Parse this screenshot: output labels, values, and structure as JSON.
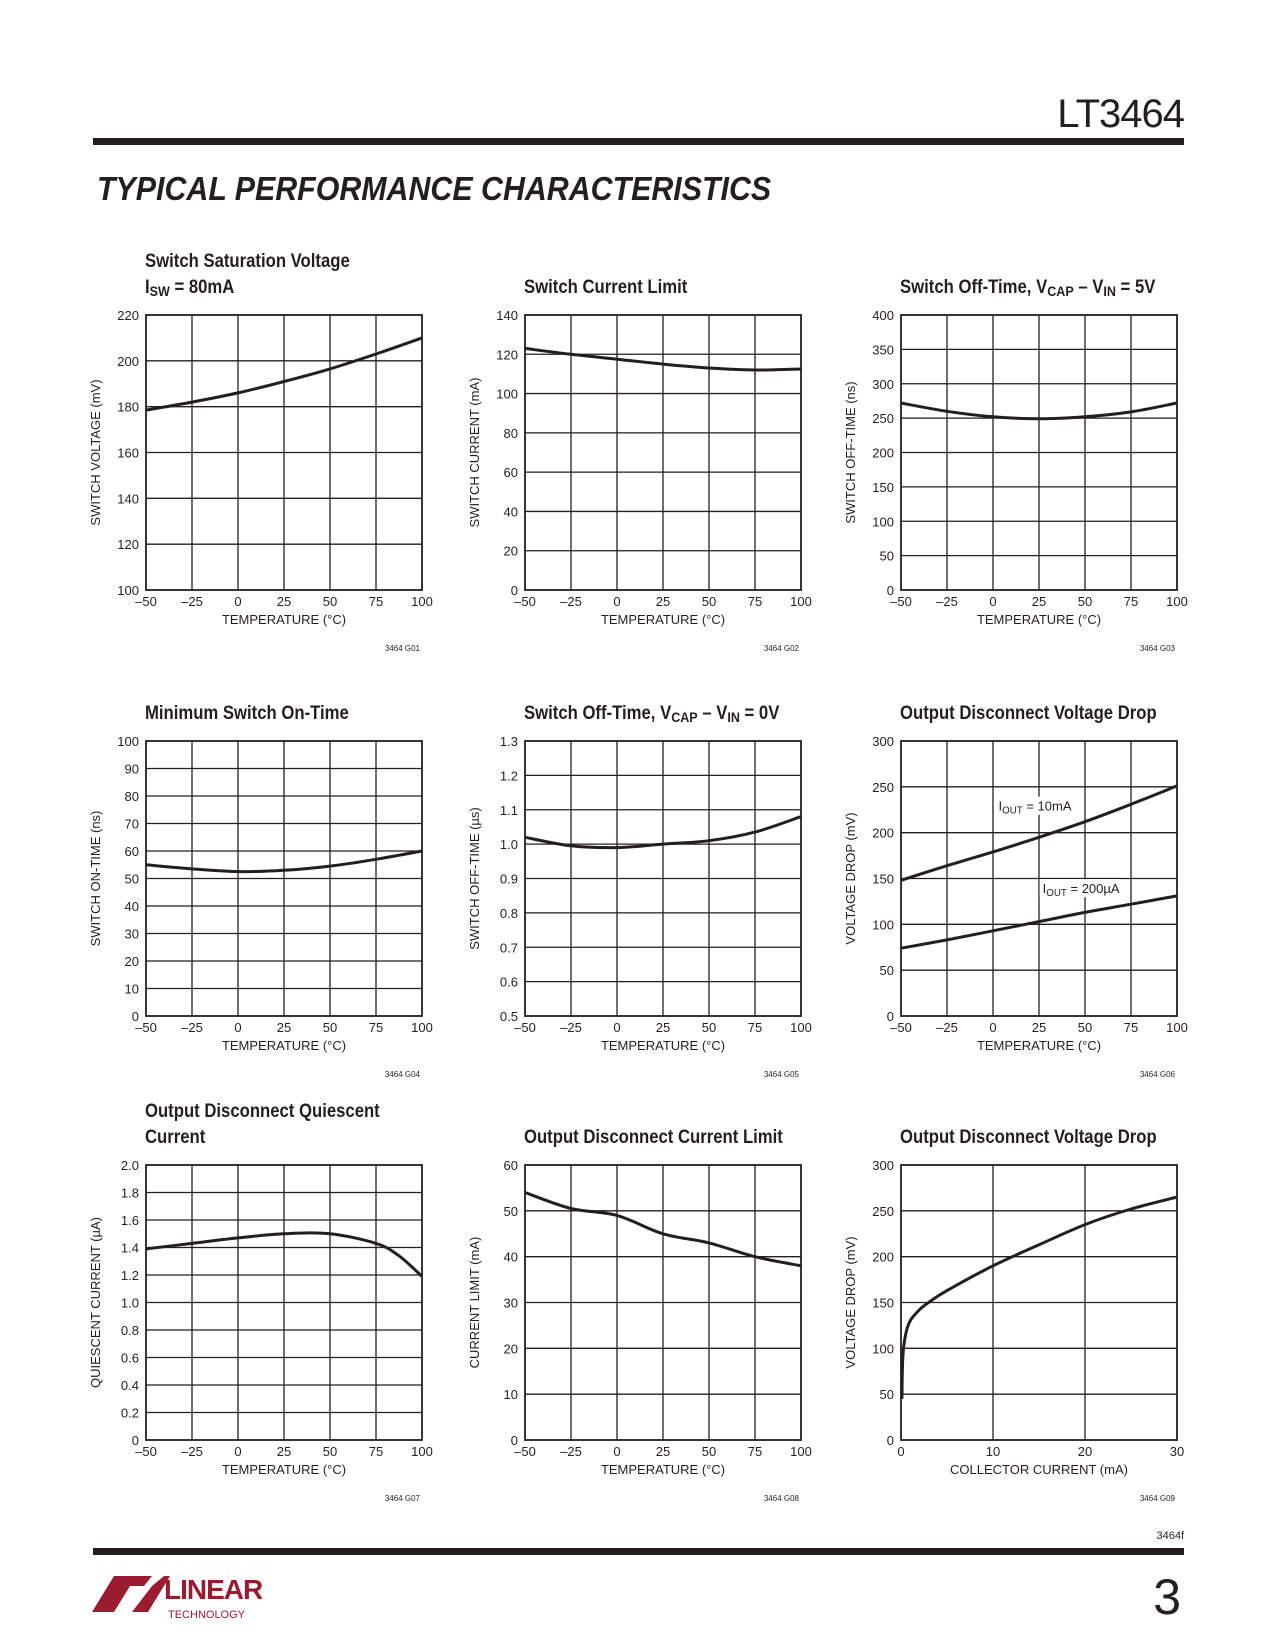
{
  "header": {
    "part_number": "LT3464",
    "section_title": "Typical Performance Characteristics"
  },
  "footer": {
    "doc_id": "3464f",
    "page_number": "3",
    "logo_text": "LINEAR",
    "logo_subtext": "TECHNOLOGY",
    "logo_color": "#9b1b30"
  },
  "chart_data": [
    {
      "type": "line",
      "id": "3464 G01",
      "title": [
        [
          {
            "t": "Switch Saturation Voltage"
          }
        ],
        [
          {
            "t": "I"
          },
          {
            "sub": "SW"
          },
          {
            "t": " = 80mA"
          }
        ]
      ],
      "xlabel": "TEMPERATURE (°C)",
      "ylabel": "SWITCH VOLTAGE (mV)",
      "xlim": [
        -50,
        100
      ],
      "ylim": [
        100,
        220
      ],
      "xticks": [
        "–50",
        "–25",
        "0",
        "25",
        "50",
        "75",
        "100"
      ],
      "yticks": [
        "100",
        "120",
        "140",
        "160",
        "180",
        "200",
        "220"
      ],
      "grid": true,
      "series": [
        {
          "name": "",
          "x": [
            -50,
            -25,
            0,
            25,
            50,
            75,
            100
          ],
          "y": [
            178.5,
            182,
            186,
            191,
            196.5,
            203,
            210
          ]
        }
      ]
    },
    {
      "type": "line",
      "id": "3464 G02",
      "title": [
        [
          {
            "t": "Switch Current Limit"
          }
        ]
      ],
      "xlabel": "TEMPERATURE (°C)",
      "ylabel": "SWITCH CURRENT (mA)",
      "xlim": [
        -50,
        100
      ],
      "ylim": [
        0,
        140
      ],
      "xticks": [
        "–50",
        "–25",
        "0",
        "25",
        "50",
        "75",
        "100"
      ],
      "yticks": [
        "0",
        "20",
        "40",
        "60",
        "80",
        "100",
        "120",
        "140"
      ],
      "grid": true,
      "series": [
        {
          "name": "",
          "x": [
            -50,
            -25,
            0,
            25,
            50,
            75,
            100
          ],
          "y": [
            123,
            120,
            117.5,
            115,
            113,
            112,
            112.5
          ]
        }
      ]
    },
    {
      "type": "line",
      "id": "3464 G03",
      "title": [
        [
          {
            "t": "Switch Off-Time, V"
          },
          {
            "sub": "CAP"
          },
          {
            "t": " – V"
          },
          {
            "sub": "IN"
          },
          {
            "t": " = 5V"
          }
        ]
      ],
      "xlabel": "TEMPERATURE (°C)",
      "ylabel": "SWITCH OFF-TIME (ns)",
      "xlim": [
        -50,
        100
      ],
      "ylim": [
        0,
        400
      ],
      "xticks": [
        "–50",
        "–25",
        "0",
        "25",
        "50",
        "75",
        "100"
      ],
      "yticks": [
        "0",
        "50",
        "100",
        "150",
        "200",
        "250",
        "300",
        "350",
        "400"
      ],
      "grid": true,
      "series": [
        {
          "name": "",
          "x": [
            -50,
            -25,
            0,
            25,
            50,
            75,
            100
          ],
          "y": [
            272,
            260,
            252,
            249,
            252,
            259,
            272
          ]
        }
      ]
    },
    {
      "type": "line",
      "id": "3464 G04",
      "title": [
        [
          {
            "t": "Minimum Switch On-Time"
          }
        ]
      ],
      "xlabel": "TEMPERATURE (°C)",
      "ylabel": "SWITCH ON-TIME (ns)",
      "xlim": [
        -50,
        100
      ],
      "ylim": [
        0,
        100
      ],
      "xticks": [
        "–50",
        "–25",
        "0",
        "25",
        "50",
        "75",
        "100"
      ],
      "yticks": [
        "0",
        "10",
        "20",
        "30",
        "40",
        "50",
        "60",
        "70",
        "80",
        "90",
        "100"
      ],
      "grid": true,
      "series": [
        {
          "name": "",
          "x": [
            -50,
            -25,
            0,
            25,
            50,
            75,
            100
          ],
          "y": [
            55,
            53.5,
            52.5,
            53,
            54.5,
            57,
            60
          ]
        }
      ]
    },
    {
      "type": "line",
      "id": "3464 G05",
      "title": [
        [
          {
            "t": "Switch Off-Time, V"
          },
          {
            "sub": "CAP"
          },
          {
            "t": " – V"
          },
          {
            "sub": "IN"
          },
          {
            "t": " = 0V"
          }
        ]
      ],
      "xlabel": "TEMPERATURE (°C)",
      "ylabel": "SWITCH OFF-TIME (µs)",
      "xlim": [
        -50,
        100
      ],
      "ylim": [
        0.5,
        1.3
      ],
      "xticks": [
        "–50",
        "–25",
        "0",
        "25",
        "50",
        "75",
        "100"
      ],
      "yticks": [
        "0.5",
        "0.6",
        "0.7",
        "0.8",
        "0.9",
        "1.0",
        "1.1",
        "1.2",
        "1.3"
      ],
      "grid": true,
      "series": [
        {
          "name": "",
          "x": [
            -50,
            -25,
            0,
            25,
            50,
            75,
            100
          ],
          "y": [
            1.02,
            0.995,
            0.99,
            1.0,
            1.01,
            1.035,
            1.08
          ]
        }
      ]
    },
    {
      "type": "line",
      "id": "3464 G06",
      "title": [
        [
          {
            "t": "Output Disconnect Voltage Drop"
          }
        ]
      ],
      "xlabel": "TEMPERATURE (°C)",
      "ylabel": "VOLTAGE DROP (mV)",
      "xlim": [
        -50,
        100
      ],
      "ylim": [
        0,
        300
      ],
      "xticks": [
        "–50",
        "–25",
        "0",
        "25",
        "50",
        "75",
        "100"
      ],
      "yticks": [
        "0",
        "50",
        "100",
        "150",
        "200",
        "250",
        "300"
      ],
      "grid": true,
      "series": [
        {
          "name": "IOUT = 10mA",
          "label": [
            {
              "t": "I"
            },
            {
              "sub": "OUT"
            },
            {
              "t": " = 10mA"
            }
          ],
          "label_at": [
            3,
            224
          ],
          "x": [
            -50,
            -25,
            0,
            25,
            50,
            75,
            100
          ],
          "y": [
            148,
            164,
            179,
            195,
            212,
            231,
            251
          ]
        },
        {
          "name": "IOUT = 200µA",
          "label": [
            {
              "t": "I"
            },
            {
              "sub": "OUT"
            },
            {
              "t": " = 200µA"
            }
          ],
          "label_at": [
            27,
            134
          ],
          "x": [
            -50,
            -25,
            0,
            25,
            50,
            75,
            100
          ],
          "y": [
            74,
            83,
            93,
            103,
            113,
            122,
            131
          ]
        }
      ]
    },
    {
      "type": "line",
      "id": "3464 G07",
      "title": [
        [
          {
            "t": "Output Disconnect Quiescent"
          }
        ],
        [
          {
            "t": "Current"
          }
        ]
      ],
      "xlabel": "TEMPERATURE (°C)",
      "ylabel": "QUIESCENT CURRENT (µA)",
      "xlim": [
        -50,
        100
      ],
      "ylim": [
        0,
        2.0
      ],
      "xticks": [
        "–50",
        "–25",
        "0",
        "25",
        "50",
        "75",
        "100"
      ],
      "yticks": [
        "0",
        "0.2",
        "0.4",
        "0.6",
        "0.8",
        "1.0",
        "1.2",
        "1.4",
        "1.6",
        "1.8",
        "2.0"
      ],
      "grid": true,
      "series": [
        {
          "name": "",
          "x": [
            -50,
            -25,
            0,
            25,
            50,
            75,
            87.5,
            100
          ],
          "y": [
            1.39,
            1.43,
            1.47,
            1.5,
            1.5,
            1.43,
            1.34,
            1.19
          ]
        }
      ]
    },
    {
      "type": "line",
      "id": "3464 G08",
      "title": [
        [
          {
            "t": "Output Disconnect Current Limit"
          }
        ]
      ],
      "xlabel": "TEMPERATURE (°C)",
      "ylabel": "CURRENT LIMIT (mA)",
      "xlim": [
        -50,
        100
      ],
      "ylim": [
        0,
        60
      ],
      "xticks": [
        "–50",
        "–25",
        "0",
        "25",
        "50",
        "75",
        "100"
      ],
      "yticks": [
        "0",
        "10",
        "20",
        "30",
        "40",
        "50",
        "60"
      ],
      "grid": true,
      "series": [
        {
          "name": "",
          "x": [
            -50,
            -25,
            0,
            25,
            50,
            75,
            100
          ],
          "y": [
            54,
            50.5,
            49,
            45,
            43,
            40,
            38
          ]
        }
      ]
    },
    {
      "type": "line",
      "id": "3464 G09",
      "title": [
        [
          {
            "t": "Output Disconnect Voltage Drop"
          }
        ]
      ],
      "xlabel": "COLLECTOR CURRENT (mA)",
      "ylabel": "VOLTAGE DROP (mV)",
      "xlim": [
        0,
        30
      ],
      "ylim": [
        0,
        300
      ],
      "xticks": [
        "0",
        "10",
        "20",
        "30"
      ],
      "yticks": [
        "0",
        "50",
        "100",
        "150",
        "200",
        "250",
        "300"
      ],
      "grid": true,
      "series": [
        {
          "name": "",
          "x": [
            0.1,
            0.2,
            0.5,
            1,
            2,
            3,
            5,
            10,
            15,
            20,
            25,
            30
          ],
          "y": [
            45,
            90,
            115,
            130,
            142,
            150,
            163,
            190,
            213,
            235,
            252,
            265
          ]
        }
      ]
    }
  ]
}
